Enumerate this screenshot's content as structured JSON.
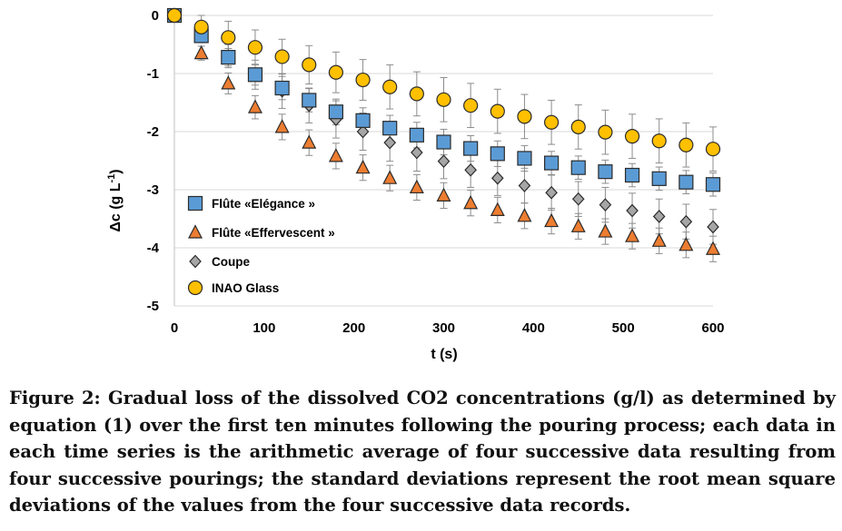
{
  "caption": "Figure 2: Gradual loss of the dissolved CO2 concentrations (g/l) as determined by equation (1) over the first ten minutes following the pouring process; each data in each time series is the arithmetic average of four successive data resulting from four successive pourings; the standard deviations represent the root mean square deviations of the values from the four successive data records.",
  "chart_data": {
    "type": "scatter",
    "xlabel": "t (s)",
    "ylabel": "Δc (g L",
    "ylabel_sup": "-1",
    "ylabel_end": ")",
    "xlim": [
      0,
      600
    ],
    "ylim": [
      -5,
      0
    ],
    "xticks": [
      0,
      100,
      200,
      300,
      400,
      500,
      600
    ],
    "yticks": [
      0,
      -1,
      -2,
      -3,
      -4,
      -5
    ],
    "grid": "horizontal",
    "legend_position": "lower-left",
    "x": [
      0,
      30,
      60,
      90,
      120,
      150,
      180,
      210,
      240,
      270,
      300,
      330,
      360,
      390,
      420,
      450,
      480,
      510,
      540,
      570,
      600
    ],
    "series": [
      {
        "name": "Flûte «Elégance »",
        "marker": "square",
        "color": "#5b9bd5",
        "values": [
          0,
          -0.35,
          -0.72,
          -1.02,
          -1.25,
          -1.46,
          -1.66,
          -1.81,
          -1.94,
          -2.06,
          -2.18,
          -2.29,
          -2.38,
          -2.46,
          -2.54,
          -2.62,
          -2.69,
          -2.75,
          -2.81,
          -2.87,
          -2.91
        ],
        "errors": [
          0,
          0.1,
          0.15,
          0.18,
          0.2,
          0.2,
          0.22,
          0.22,
          0.22,
          0.22,
          0.22,
          0.22,
          0.22,
          0.22,
          0.2,
          0.2,
          0.2,
          0.2,
          0.2,
          0.2,
          0.2
        ]
      },
      {
        "name": "Flûte «Effervescent »",
        "marker": "triangle",
        "color": "#ed7d31",
        "values": [
          0,
          -0.65,
          -1.17,
          -1.58,
          -1.92,
          -2.19,
          -2.42,
          -2.62,
          -2.8,
          -2.96,
          -3.1,
          -3.23,
          -3.35,
          -3.45,
          -3.54,
          -3.63,
          -3.72,
          -3.8,
          -3.88,
          -3.95,
          -4.02
        ],
        "errors": [
          0,
          0.12,
          0.18,
          0.2,
          0.22,
          0.22,
          0.22,
          0.22,
          0.22,
          0.22,
          0.22,
          0.22,
          0.22,
          0.22,
          0.22,
          0.22,
          0.22,
          0.22,
          0.22,
          0.22,
          0.22
        ]
      },
      {
        "name": "Coupe",
        "marker": "diamond",
        "color": "#a6a6a6",
        "values": [
          0,
          -0.35,
          -0.7,
          -1.02,
          -1.3,
          -1.55,
          -1.79,
          -2.0,
          -2.19,
          -2.36,
          -2.51,
          -2.66,
          -2.8,
          -2.93,
          -3.05,
          -3.16,
          -3.26,
          -3.36,
          -3.46,
          -3.55,
          -3.64
        ],
        "errors": [
          0,
          0.12,
          0.2,
          0.25,
          0.3,
          0.3,
          0.32,
          0.32,
          0.32,
          0.32,
          0.3,
          0.3,
          0.3,
          0.3,
          0.3,
          0.3,
          0.3,
          0.3,
          0.3,
          0.3,
          0.3
        ]
      },
      {
        "name": "INAO Glass",
        "marker": "circle",
        "color": "#ffc000",
        "values": [
          0,
          -0.2,
          -0.38,
          -0.55,
          -0.71,
          -0.85,
          -0.98,
          -1.11,
          -1.23,
          -1.35,
          -1.45,
          -1.55,
          -1.65,
          -1.74,
          -1.84,
          -1.92,
          -2.01,
          -2.08,
          -2.16,
          -2.23,
          -2.3
        ],
        "errors": [
          0,
          0.2,
          0.28,
          0.3,
          0.3,
          0.33,
          0.35,
          0.35,
          0.38,
          0.38,
          0.38,
          0.38,
          0.38,
          0.38,
          0.38,
          0.38,
          0.38,
          0.38,
          0.38,
          0.38,
          0.38
        ]
      }
    ]
  }
}
